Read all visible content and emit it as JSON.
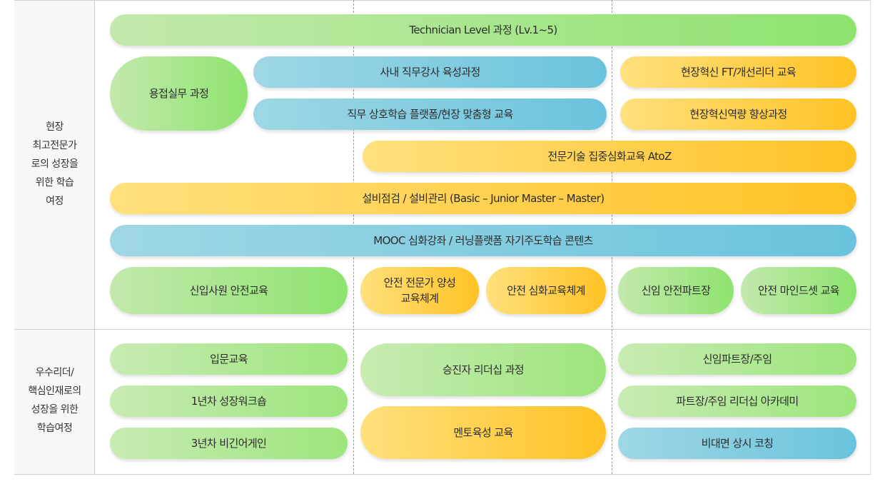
{
  "rows": [
    {
      "label_lines": [
        "현장",
        "최고전문가",
        "로의 성장을",
        "위한 학습",
        "여정"
      ]
    },
    {
      "label_lines": [
        "우수리더/",
        "핵심인재로의",
        "성장을 위한",
        "학습여정"
      ]
    }
  ],
  "programs": {
    "technician": "Technician Level 과정 (Lv.1~5)",
    "welding": "용접실무 과정",
    "internal_instructor": "사내 직무강사 육성과정",
    "peer_learning": "직무 상호학습 플랫폼/현장 맞춤형 교육",
    "ft_leader": "현장혁신 FT/개선리더 교육",
    "innovation": "현장혁신역량 향상과정",
    "atoz": "전문기술 집중심화교육 AtoZ",
    "equipment": "설비점검 / 설비관리 (Basic – Junior Master – Master)",
    "mooc": "MOOC 심화강좌 / 러닝플랫폼 자기주도학습 콘텐츠",
    "new_safety": "신입사원 안전교육",
    "safety_expert_1": "안전 전문가 양성",
    "safety_expert_2": "교육체계",
    "safety_advanced": "안전 심화교육체계",
    "new_safety_part": "신임 안전파트장",
    "safety_mindset": "안전 마인드셋 교육",
    "intro": "입문교육",
    "year1": "1년차 성장워크숍",
    "year3": "3년차 비긴어게인",
    "promotion": "승진자 리더십 과정",
    "mentor": "멘토육성 교육",
    "new_part_lead": "신임파트장/주임",
    "leadership_academy": "파트장/주임 리더십 아카데미",
    "remote_coaching": "비대면 상시 코칭"
  },
  "colors": {
    "green": "#8ee36f",
    "blue": "#69c3dc",
    "yellow": "#ffc224"
  }
}
